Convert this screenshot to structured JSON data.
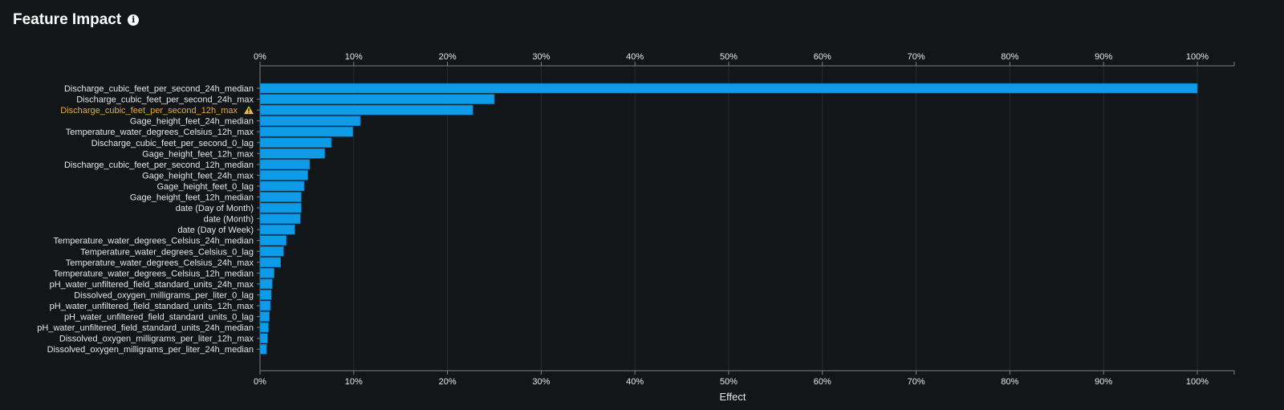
{
  "header": {
    "title": "Feature Impact",
    "info_icon": "info-icon"
  },
  "colors": {
    "background": "#121619",
    "bar": "#0e9be8",
    "axis": "#7a7f84",
    "text": "#e6e6e6",
    "warning_label": "#e8a93a",
    "warning_icon": "#f2c230"
  },
  "chart_data": {
    "type": "bar",
    "orientation": "horizontal",
    "title": "",
    "xlabel": "Effect",
    "ylabel": "",
    "xlim": [
      0,
      100
    ],
    "x_ticks": [
      "0%",
      "10%",
      "20%",
      "30%",
      "40%",
      "50%",
      "60%",
      "70%",
      "80%",
      "90%",
      "100%"
    ],
    "grid": true,
    "categories": [
      "Discharge_cubic_feet_per_second_24h_median",
      "Discharge_cubic_feet_per_second_24h_max",
      "Discharge_cubic_feet_per_second_12h_max",
      "Gage_height_feet_24h_median",
      "Temperature_water_degrees_Celsius_12h_max",
      "Discharge_cubic_feet_per_second_0_lag",
      "Gage_height_feet_12h_max",
      "Discharge_cubic_feet_per_second_12h_median",
      "Gage_height_feet_24h_max",
      "Gage_height_feet_0_lag",
      "Gage_height_feet_12h_median",
      "date (Day of Month)",
      "date (Month)",
      "date (Day of Week)",
      "Temperature_water_degrees_Celsius_24h_median",
      "Temperature_water_degrees_Celsius_0_lag",
      "Temperature_water_degrees_Celsius_24h_max",
      "Temperature_water_degrees_Celsius_12h_median",
      "pH_water_unfiltered_field_standard_units_24h_max",
      "Dissolved_oxygen_milligrams_per_liter_0_lag",
      "pH_water_unfiltered_field_standard_units_12h_max",
      "pH_water_unfiltered_field_standard_units_0_lag",
      "pH_water_unfiltered_field_standard_units_24h_median",
      "Dissolved_oxygen_milligrams_per_liter_12h_max",
      "Dissolved_oxygen_milligrams_per_liter_24h_median"
    ],
    "values": [
      100,
      25.0,
      22.7,
      10.7,
      9.9,
      7.6,
      6.9,
      5.3,
      5.1,
      4.7,
      4.4,
      4.4,
      4.3,
      3.7,
      2.8,
      2.5,
      2.2,
      1.5,
      1.3,
      1.2,
      1.1,
      1.0,
      0.9,
      0.8,
      0.7
    ],
    "warnings": [
      false,
      false,
      true,
      false,
      false,
      false,
      false,
      false,
      false,
      false,
      false,
      false,
      false,
      false,
      false,
      false,
      false,
      false,
      false,
      false,
      false,
      false,
      false,
      false,
      false
    ]
  }
}
